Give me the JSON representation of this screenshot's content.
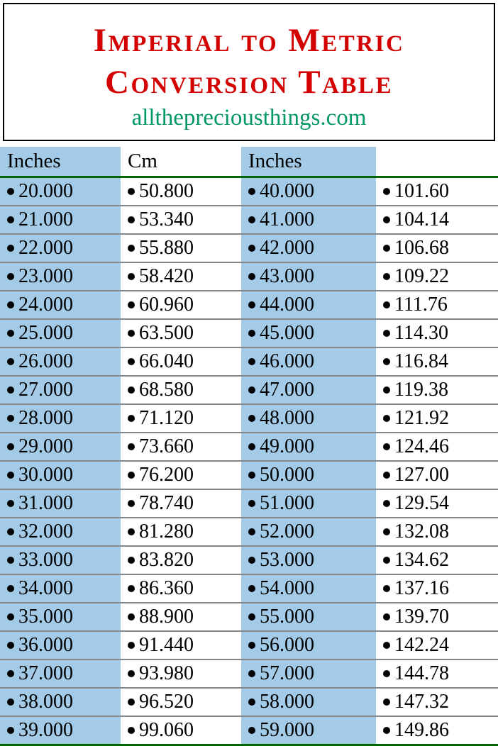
{
  "header": {
    "title_line1": "Imperial to Metric",
    "title_line2": "Conversion Table",
    "subtitle": "allthepreciousthings.com"
  },
  "table": {
    "columns": [
      "Inches",
      "Cm",
      "Inches",
      ""
    ],
    "column_bg": [
      "blue",
      "white",
      "blue",
      "white"
    ],
    "header_fontsize": 29,
    "cell_fontsize": 28,
    "header_underline_color": "#006600",
    "row_border_color": "#888888",
    "blue_bg": "#a3cbe8",
    "white_bg": "#ffffff",
    "rows": [
      [
        "20.000",
        "50.800",
        "40.000",
        "101.60"
      ],
      [
        "21.000",
        "53.340",
        "41.000",
        "104.14"
      ],
      [
        "22.000",
        "55.880",
        "42.000",
        "106.68"
      ],
      [
        "23.000",
        "58.420",
        "43.000",
        "109.22"
      ],
      [
        "24.000",
        "60.960",
        "44.000",
        "111.76"
      ],
      [
        "25.000",
        "63.500",
        "45.000",
        "114.30"
      ],
      [
        "26.000",
        "66.040",
        "46.000",
        "116.84"
      ],
      [
        "27.000",
        "68.580",
        "47.000",
        "119.38"
      ],
      [
        "28.000",
        "71.120",
        "48.000",
        "121.92"
      ],
      [
        "29.000",
        "73.660",
        "49.000",
        "124.46"
      ],
      [
        "30.000",
        "76.200",
        "50.000",
        "127.00"
      ],
      [
        "31.000",
        "78.740",
        "51.000",
        "129.54"
      ],
      [
        "32.000",
        "81.280",
        "52.000",
        "132.08"
      ],
      [
        "33.000",
        "83.820",
        "53.000",
        "134.62"
      ],
      [
        "34.000",
        "86.360",
        "54.000",
        "137.16"
      ],
      [
        "35.000",
        "88.900",
        "55.000",
        "139.70"
      ],
      [
        "36.000",
        "91.440",
        "56.000",
        "142.24"
      ],
      [
        "37.000",
        "93.980",
        "57.000",
        "144.78"
      ],
      [
        "38.000",
        "96.520",
        "58.000",
        "147.32"
      ],
      [
        "39.000",
        "99.060",
        "59.000",
        "149.86"
      ]
    ]
  },
  "colors": {
    "title": "#d40000",
    "subtitle": "#009966",
    "header_border": "#000000",
    "bottom_rule": "#006600"
  }
}
